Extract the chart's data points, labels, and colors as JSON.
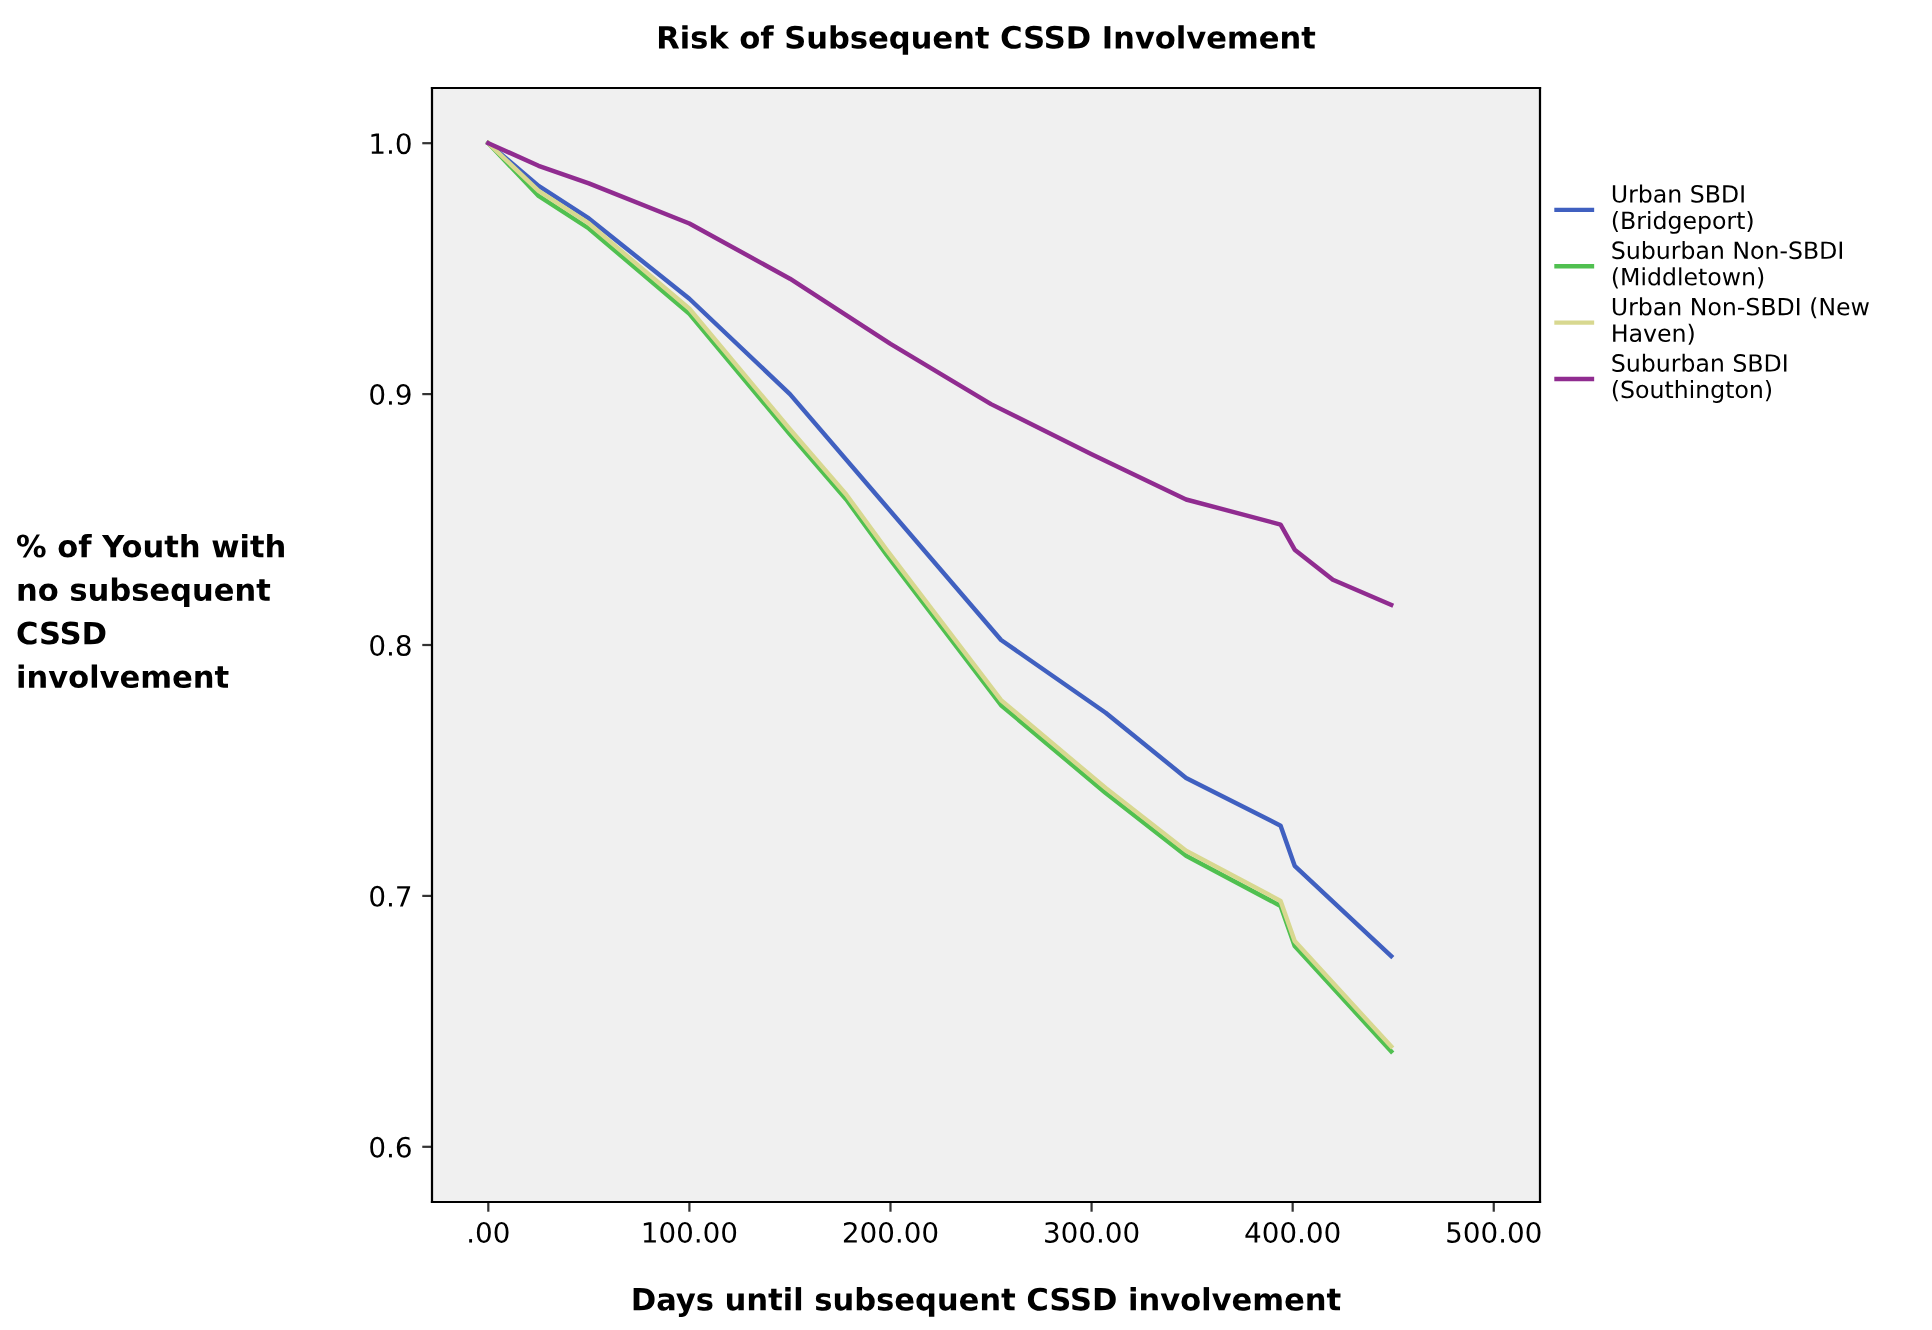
{
  "chart_data": {
    "type": "line",
    "title": "Risk of Subsequent CSSD Involvement",
    "xlabel": "Days until subsequent CSSD involvement",
    "ylabel": "% of Youth with\nno subsequent\nCSSD\ninvolvement",
    "xlim": [
      -28,
      523
    ],
    "ylim": [
      0.578,
      1.022
    ],
    "xticks": [
      {
        "value": 0,
        "label": ".00"
      },
      {
        "value": 100,
        "label": "100.00"
      },
      {
        "value": 200,
        "label": "200.00"
      },
      {
        "value": 300,
        "label": "300.00"
      },
      {
        "value": 400,
        "label": "400.00"
      },
      {
        "value": 500,
        "label": "500.00"
      }
    ],
    "yticks": [
      {
        "value": 0.6,
        "label": "0.6"
      },
      {
        "value": 0.7,
        "label": "0.7"
      },
      {
        "value": 0.8,
        "label": "0.8"
      },
      {
        "value": 0.9,
        "label": "0.9"
      },
      {
        "value": 1.0,
        "label": "1.0"
      }
    ],
    "grid": false,
    "legend": "top right",
    "line_style": "solid",
    "marker": "none",
    "series": [
      {
        "name": "Urban SBDI (Bridgeport)",
        "color": "#4060c0",
        "x": [
          0,
          25,
          50,
          100,
          150,
          195,
          255,
          307,
          347,
          394,
          401,
          449
        ],
        "values": [
          1.0,
          0.983,
          0.97,
          0.938,
          0.9,
          0.858,
          0.802,
          0.773,
          0.747,
          0.728,
          0.712,
          0.676
        ]
      },
      {
        "name": "Suburban Non-SBDI (Middletown)",
        "color": "#50c050",
        "x": [
          0,
          25,
          50,
          100,
          150,
          178,
          198,
          255,
          307,
          347,
          394,
          401,
          449
        ],
        "values": [
          1.0,
          0.979,
          0.966,
          0.932,
          0.884,
          0.858,
          0.836,
          0.776,
          0.741,
          0.716,
          0.696,
          0.68,
          0.638
        ]
      },
      {
        "name": "Urban Non-SBDI (New Haven)",
        "color": "#d8d890",
        "x": [
          0,
          25,
          50,
          100,
          150,
          178,
          198,
          255,
          307,
          347,
          394,
          401,
          449
        ],
        "values": [
          1.0,
          0.981,
          0.968,
          0.934,
          0.886,
          0.86,
          0.838,
          0.778,
          0.743,
          0.718,
          0.698,
          0.682,
          0.64
        ]
      },
      {
        "name": "Suburban SBDI (Southington)",
        "color": "#902c90",
        "x": [
          0,
          25,
          50,
          100,
          150,
          200,
          250,
          300,
          347,
          394,
          401,
          420,
          449
        ],
        "values": [
          1.0,
          0.991,
          0.984,
          0.968,
          0.946,
          0.92,
          0.896,
          0.876,
          0.858,
          0.848,
          0.838,
          0.826,
          0.816
        ]
      }
    ]
  }
}
